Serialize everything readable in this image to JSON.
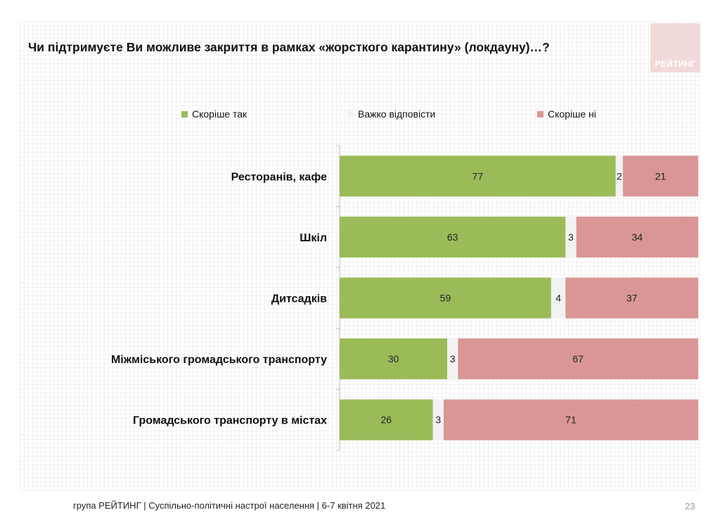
{
  "title": "Чи підтримуєте Ви можливе закриття в рамках «жорсткого карантину» (локдауну)…?",
  "logo": {
    "text": "РЕЙТИНГ"
  },
  "footer": "група РЕЙТИНГ | Суспільно-політичні настрої населення | 6-7 квітня 2021",
  "page_number": "23",
  "colors": {
    "yes": "#9bbb59",
    "hard": "#f2f2f2",
    "no": "#d99694",
    "logo_bg": "#f2d9d9"
  },
  "chart_data": {
    "type": "bar",
    "orientation": "horizontal",
    "stacked": true,
    "categories": [
      "Ресторанів, кафе",
      "Шкіл",
      "Дитсадків",
      "Міжміського громадського транспорту",
      "Громадського транспорту в містах"
    ],
    "series": [
      {
        "name": "Скоріше так",
        "values": [
          77,
          63,
          59,
          30,
          26
        ]
      },
      {
        "name": "Важко відповісти",
        "values": [
          2,
          3,
          4,
          3,
          3
        ]
      },
      {
        "name": "Скоріше ні",
        "values": [
          21,
          34,
          37,
          67,
          71
        ]
      }
    ],
    "xlim": [
      0,
      100
    ],
    "legend_position": "top",
    "data_labels": true
  }
}
